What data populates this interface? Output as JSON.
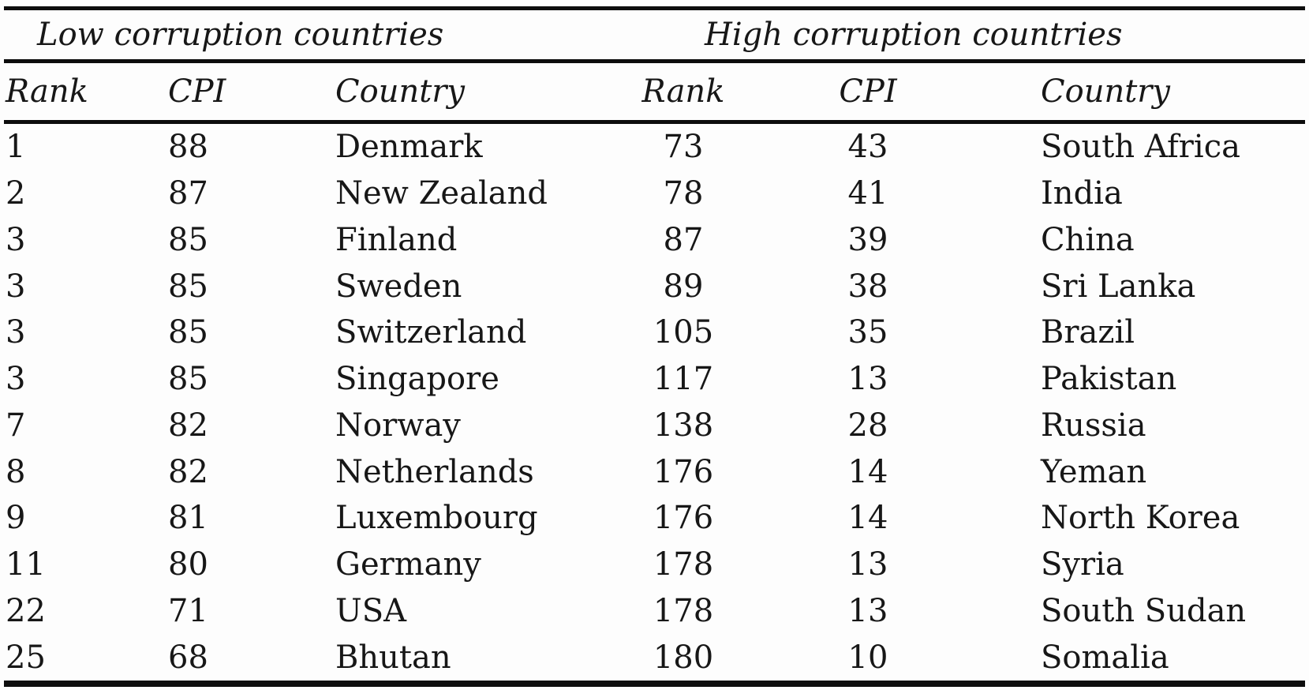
{
  "page": {
    "background": "#fdfdfd",
    "text_color": "#171717",
    "rule_color": "#0d0d0d"
  },
  "table": {
    "sections": [
      {
        "title": "Low corruption countries"
      },
      {
        "title": "High corruption countries"
      }
    ],
    "column_headers": [
      "Rank",
      "CPI",
      "Country",
      "Rank",
      "CPI",
      "Country"
    ],
    "rows": [
      {
        "low": {
          "rank": "1",
          "cpi": "88",
          "country": "Denmark"
        },
        "high": {
          "rank": "73",
          "cpi": "43",
          "country": "South Africa"
        }
      },
      {
        "low": {
          "rank": "2",
          "cpi": "87",
          "country": "New Zealand"
        },
        "high": {
          "rank": "78",
          "cpi": "41",
          "country": "India"
        }
      },
      {
        "low": {
          "rank": "3",
          "cpi": "85",
          "country": "Finland"
        },
        "high": {
          "rank": "87",
          "cpi": "39",
          "country": "China"
        }
      },
      {
        "low": {
          "rank": "3",
          "cpi": "85",
          "country": "Sweden"
        },
        "high": {
          "rank": "89",
          "cpi": "38",
          "country": "Sri Lanka"
        }
      },
      {
        "low": {
          "rank": "3",
          "cpi": "85",
          "country": "Switzerland"
        },
        "high": {
          "rank": "105",
          "cpi": "35",
          "country": "Brazil"
        }
      },
      {
        "low": {
          "rank": "3",
          "cpi": "85",
          "country": "Singapore"
        },
        "high": {
          "rank": "117",
          "cpi": "13",
          "country": "Pakistan"
        }
      },
      {
        "low": {
          "rank": "7",
          "cpi": "82",
          "country": "Norway"
        },
        "high": {
          "rank": "138",
          "cpi": "28",
          "country": "Russia"
        }
      },
      {
        "low": {
          "rank": "8",
          "cpi": "82",
          "country": "Netherlands"
        },
        "high": {
          "rank": "176",
          "cpi": "14",
          "country": "Yeman"
        }
      },
      {
        "low": {
          "rank": "9",
          "cpi": "81",
          "country": "Luxembourg"
        },
        "high": {
          "rank": "176",
          "cpi": "14",
          "country": "North Korea"
        }
      },
      {
        "low": {
          "rank": "11",
          "cpi": "80",
          "country": "Germany"
        },
        "high": {
          "rank": "178",
          "cpi": "13",
          "country": "Syria"
        }
      },
      {
        "low": {
          "rank": "22",
          "cpi": "71",
          "country": "USA"
        },
        "high": {
          "rank": "178",
          "cpi": "13",
          "country": "South Sudan"
        }
      },
      {
        "low": {
          "rank": "25",
          "cpi": "68",
          "country": "Bhutan"
        },
        "high": {
          "rank": "180",
          "cpi": "10",
          "country": "Somalia"
        }
      }
    ]
  }
}
